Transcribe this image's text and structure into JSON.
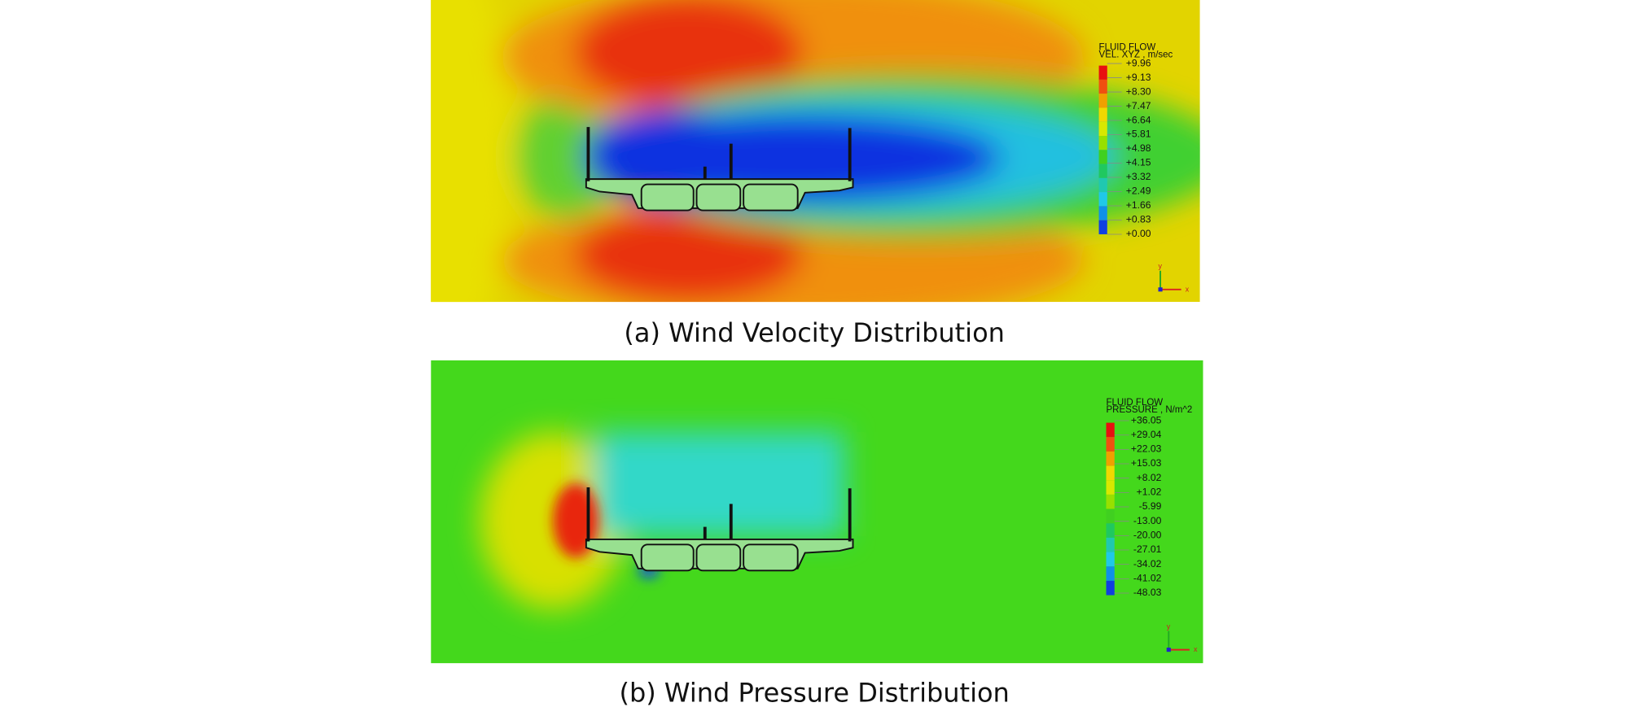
{
  "panels": [
    {
      "caption": "(a) Wind Velocity Distribution",
      "legend": {
        "title": "FLUID FLOW",
        "quantity": "VEL. XYZ , m/sec",
        "values": [
          "+9.96",
          "+9.13",
          "+8.30",
          "+7.47",
          "+6.64",
          "+5.81",
          "+4.98",
          "+4.15",
          "+3.32",
          "+2.49",
          "+1.66",
          "+0.83",
          "+0.00"
        ],
        "colors": [
          "#e81010",
          "#f05010",
          "#f0a000",
          "#f0d800",
          "#d8e800",
          "#98e000",
          "#40d020",
          "#20c860",
          "#20c8b0",
          "#20c8e8",
          "#1090e8",
          "#1040e0"
        ]
      },
      "triad": {
        "x": "x",
        "y": "y"
      }
    },
    {
      "caption": "(b) Wind Pressure Distribution",
      "legend": {
        "title": "FLUID FLOW",
        "quantity": "PRESSURE , N/m^2",
        "values": [
          "+36.05",
          "+29.04",
          "+22.03",
          "+15.03",
          "+8.02",
          "+1.02",
          "-5.99",
          "-13.00",
          "-20.00",
          "-27.01",
          "-34.02",
          "-41.02",
          "-48.03"
        ],
        "colors": [
          "#e81010",
          "#f05010",
          "#f0a000",
          "#f0d800",
          "#d8e800",
          "#98e000",
          "#40d020",
          "#20c860",
          "#20c8b0",
          "#20c8e8",
          "#1090e8",
          "#1040e0"
        ]
      },
      "triad": {
        "x": "x",
        "y": "y"
      }
    }
  ]
}
